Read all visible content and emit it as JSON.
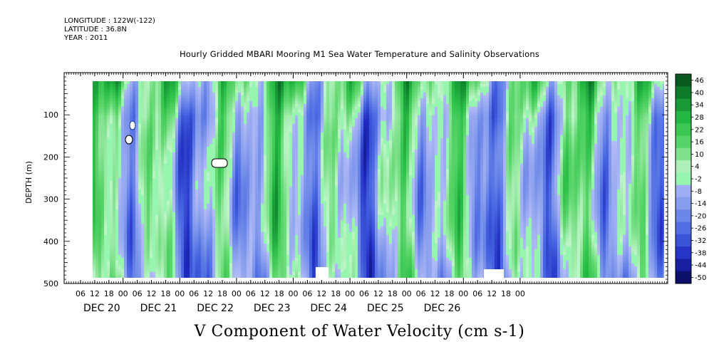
{
  "header": {
    "longitude": "LONGITUDE : 122W(-122)",
    "latitude": "LATITUDE : 36.8N",
    "year": "YEAR : 2011"
  },
  "chart_data": {
    "type": "heatmap",
    "title": "Hourly Gridded MBARI Mooring M1 Sea Water Temperature and Salinity Observations",
    "xlabel": "V Component of Water Velocity (cm s-1)",
    "ylabel": "DEPTH (m)",
    "ylim": [
      500,
      0
    ],
    "y_ticks": [
      100,
      200,
      300,
      400,
      500
    ],
    "x_hour_ticks": [
      "06",
      "12",
      "18",
      "00",
      "06",
      "12",
      "18",
      "00",
      "06",
      "12",
      "18",
      "00",
      "06",
      "12",
      "18",
      "00",
      "06",
      "12",
      "18",
      "00",
      "06",
      "12",
      "18",
      "00",
      "06",
      "12",
      "18",
      "00",
      "06",
      "12",
      "18",
      "00"
    ],
    "x_day_labels": [
      "DEC 20",
      "DEC 21",
      "DEC 22",
      "DEC 23",
      "DEC 24",
      "DEC 25",
      "DEC 26"
    ],
    "colorbar_levels": [
      46,
      40,
      34,
      28,
      22,
      16,
      10,
      4,
      -2,
      -8,
      -14,
      -20,
      -26,
      -32,
      -38,
      -44,
      -50
    ],
    "colorbar_range": [
      -50,
      50
    ],
    "data_depth_range": [
      20,
      490
    ]
  }
}
